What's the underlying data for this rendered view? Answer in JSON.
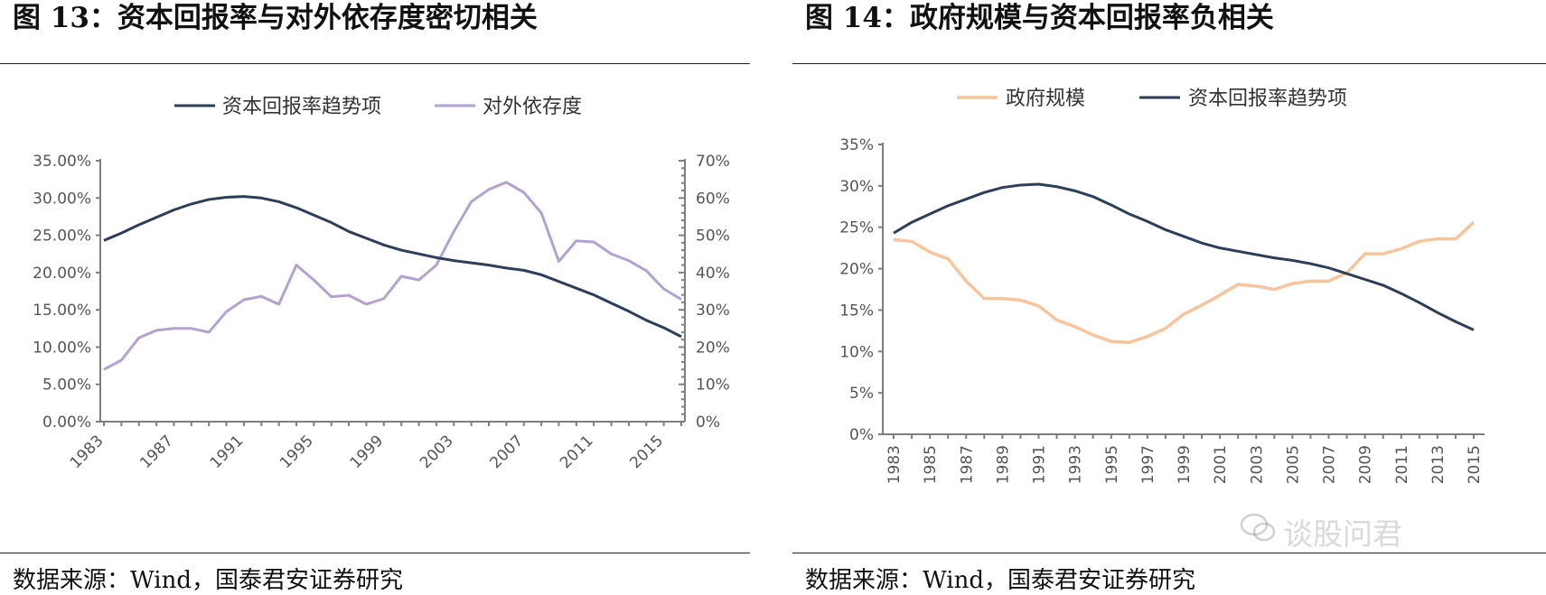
{
  "charts": [
    {
      "figure_title": "图 13：资本回报率与对外依存度密切相关",
      "source": "数据来源：Wind，国泰君安证券研究"
    },
    {
      "figure_title": "图 14：政府规模与资本回报率负相关",
      "source": "数据来源：Wind，国泰君安证券研究"
    }
  ],
  "watermark": "谈股问君",
  "chart_data": [
    {
      "type": "line",
      "x": [
        1983,
        1984,
        1985,
        1986,
        1987,
        1988,
        1989,
        1990,
        1991,
        1992,
        1993,
        1994,
        1995,
        1996,
        1997,
        1998,
        1999,
        2000,
        2001,
        2002,
        2003,
        2004,
        2005,
        2006,
        2007,
        2008,
        2009,
        2010,
        2011,
        2012,
        2013,
        2014,
        2015,
        2016
      ],
      "xticks": [
        "1983",
        "1987",
        "1991",
        "1995",
        "1999",
        "2003",
        "2007",
        "2011",
        "2015"
      ],
      "y_left_ticks": [
        "0.00%",
        "5.00%",
        "10.00%",
        "15.00%",
        "20.00%",
        "25.00%",
        "30.00%",
        "35.00%"
      ],
      "y_right_ticks": [
        "0%",
        "10%",
        "20%",
        "30%",
        "40%",
        "50%",
        "60%",
        "70%"
      ],
      "ylim_left": [
        0,
        35
      ],
      "ylim_right": [
        0,
        70
      ],
      "legend_position": "top-center",
      "series": [
        {
          "name": "资本回报率趋势项",
          "axis": "left",
          "color": "#2c3e5a",
          "values": [
            24.3,
            25.3,
            26.4,
            27.4,
            28.4,
            29.2,
            29.8,
            30.1,
            30.2,
            30.0,
            29.5,
            28.7,
            27.7,
            26.7,
            25.5,
            24.6,
            23.7,
            23.0,
            22.5,
            22.0,
            21.6,
            21.3,
            21.0,
            20.6,
            20.3,
            19.7,
            18.8,
            17.9,
            17.0,
            15.9,
            14.8,
            13.6,
            12.6,
            11.4
          ]
        },
        {
          "name": "对外依存度",
          "axis": "right",
          "color": "#b3a2cf",
          "values": [
            14,
            16.5,
            22.5,
            24.5,
            25,
            25,
            24,
            29.5,
            32.7,
            33.6,
            31.5,
            42,
            38,
            33.5,
            33.9,
            31.5,
            33,
            39,
            38,
            42,
            51,
            59,
            62.3,
            64.2,
            61.5,
            56,
            43,
            48.5,
            48.2,
            45,
            43.2,
            40.5,
            35.6,
            32.8
          ]
        }
      ]
    },
    {
      "type": "line",
      "x": [
        1983,
        1984,
        1985,
        1986,
        1987,
        1988,
        1989,
        1990,
        1991,
        1992,
        1993,
        1994,
        1995,
        1996,
        1997,
        1998,
        1999,
        2000,
        2001,
        2002,
        2003,
        2004,
        2005,
        2006,
        2007,
        2008,
        2009,
        2010,
        2011,
        2012,
        2013,
        2014,
        2015
      ],
      "xticks": [
        "1983",
        "1985",
        "1987",
        "1989",
        "1991",
        "1993",
        "1995",
        "1997",
        "1999",
        "2001",
        "2003",
        "2005",
        "2007",
        "2009",
        "2011",
        "2013",
        "2015"
      ],
      "y_ticks": [
        "0%",
        "5%",
        "10%",
        "15%",
        "20%",
        "25%",
        "30%",
        "35%"
      ],
      "ylim": [
        0,
        35
      ],
      "legend_position": "top-center",
      "series": [
        {
          "name": "政府规模",
          "color": "#f8c49c",
          "values": [
            23.5,
            23.3,
            22,
            21.2,
            18.5,
            16.4,
            16.4,
            16.2,
            15.5,
            13.8,
            13,
            12,
            11.2,
            11.1,
            11.8,
            12.8,
            14.5,
            15.6,
            16.8,
            18.1,
            17.9,
            17.5,
            18.2,
            18.5,
            18.5,
            19.5,
            21.8,
            21.8,
            22.4,
            23.3,
            23.6,
            23.6,
            25.6
          ]
        },
        {
          "name": "资本回报率趋势项",
          "color": "#2c3e5a",
          "values": [
            24.3,
            25.6,
            26.6,
            27.6,
            28.4,
            29.2,
            29.8,
            30.1,
            30.2,
            29.9,
            29.4,
            28.7,
            27.7,
            26.6,
            25.7,
            24.7,
            23.9,
            23.1,
            22.5,
            22.1,
            21.7,
            21.3,
            21.0,
            20.6,
            20.1,
            19.4,
            18.7,
            18.0,
            17.0,
            15.9,
            14.7,
            13.6,
            12.6
          ]
        }
      ]
    }
  ]
}
